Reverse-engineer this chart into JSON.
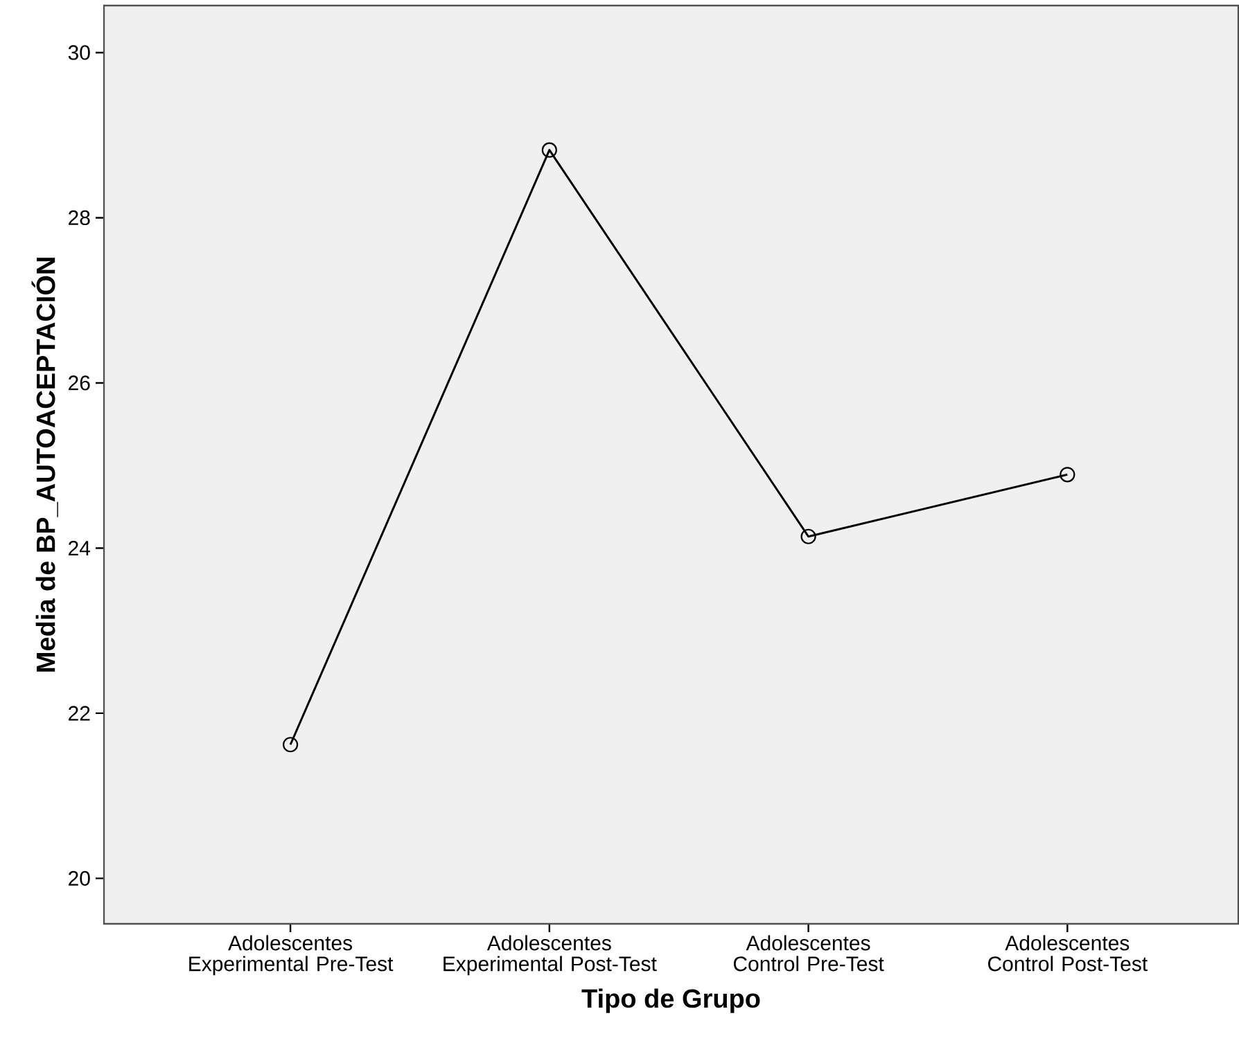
{
  "chart_data": {
    "type": "line",
    "xlabel": "Tipo de Grupo",
    "ylabel": "Media de BP_AUTOACEPTACIÓN",
    "categories": [
      "Adolescentes Experimental Pre-Test",
      "Adolescentes Experimental Post-Test",
      "Adolescentes Control Pre-Test",
      "Adolescentes Control Post-Test"
    ],
    "values": [
      21.62,
      28.82,
      24.14,
      24.89
    ],
    "color": "#000000",
    "ylim": [
      19.45,
      30.57
    ],
    "yticks": [
      20,
      22,
      24,
      26,
      28,
      30
    ],
    "grid": false,
    "marker": "circle",
    "line_style": "solid"
  }
}
